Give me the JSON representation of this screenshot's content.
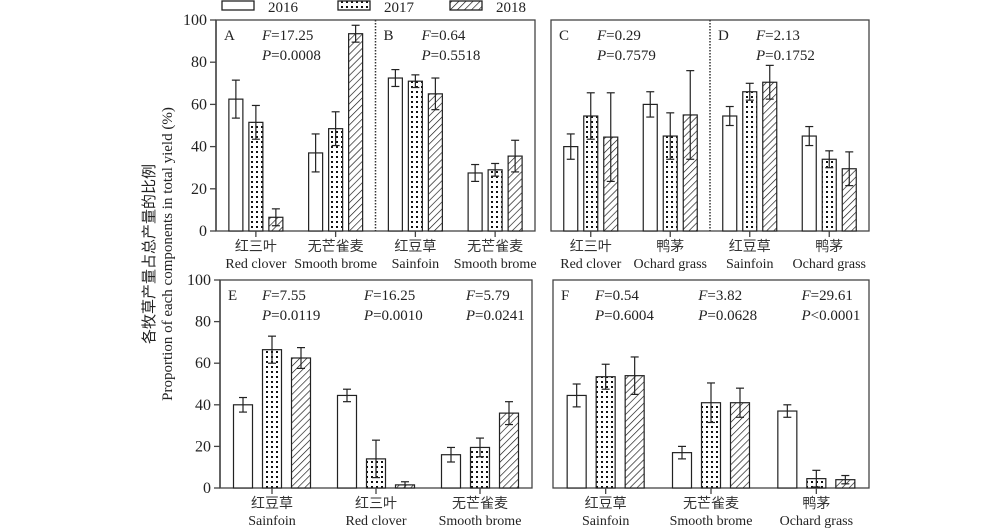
{
  "chart_data": {
    "type": "bar",
    "legend": {
      "placement": "top",
      "entries": [
        {
          "name": "2016",
          "pattern": "open"
        },
        {
          "name": "2017",
          "pattern": "dotted"
        },
        {
          "name": "2018",
          "pattern": "hatched"
        }
      ]
    },
    "ylabel_cn": "各牧草产量占总产量的比例",
    "ylabel_en": "Proportion of each components in total yield (%)",
    "ylim": [
      0,
      100
    ],
    "yticks": [
      0,
      20,
      40,
      60,
      80,
      100
    ],
    "series_names": [
      "2016",
      "2017",
      "2018"
    ],
    "panels": [
      {
        "id": "A",
        "stats": [
          {
            "F": "17.25",
            "P": "0.0008",
            "P_op": "="
          }
        ],
        "categories": [
          {
            "cn": "红三叶",
            "en": "Red clover",
            "values": [
              62.5,
              51.5,
              6.5
            ],
            "errors": [
              9,
              8,
              4
            ]
          },
          {
            "cn": "无芒雀麦",
            "en": "Smooth brome",
            "values": [
              37,
              48.5,
              93.5
            ],
            "errors": [
              9,
              8,
              4
            ]
          }
        ]
      },
      {
        "id": "B",
        "stats": [
          {
            "F": "0.64",
            "P": "0.5518",
            "P_op": "="
          }
        ],
        "categories": [
          {
            "cn": "红豆草",
            "en": "Sainfoin",
            "values": [
              72.5,
              71,
              65
            ],
            "errors": [
              4,
              3,
              7.5
            ]
          },
          {
            "cn": "无芒雀麦",
            "en": "Smooth brome",
            "values": [
              27.5,
              29,
              35.5
            ],
            "errors": [
              4,
              3,
              7.5
            ]
          }
        ]
      },
      {
        "id": "C",
        "stats": [
          {
            "F": "0.29",
            "P": "0.7579",
            "P_op": "="
          }
        ],
        "categories": [
          {
            "cn": "红三叶",
            "en": "Red clover",
            "values": [
              40,
              54.5,
              44.5
            ],
            "errors": [
              6,
              11,
              21
            ]
          },
          {
            "cn": "鸭茅",
            "en": "Ochard grass",
            "values": [
              60,
              45,
              55
            ],
            "errors": [
              6,
              11,
              21
            ]
          }
        ]
      },
      {
        "id": "D",
        "stats": [
          {
            "F": "2.13",
            "P": "0.1752",
            "P_op": "="
          }
        ],
        "categories": [
          {
            "cn": "红豆草",
            "en": "Sainfoin",
            "values": [
              54.5,
              66,
              70.5
            ],
            "errors": [
              4.5,
              4,
              8
            ]
          },
          {
            "cn": "鸭茅",
            "en": "Ochard grass",
            "values": [
              45,
              34,
              29.5
            ],
            "errors": [
              4.5,
              4,
              8
            ]
          }
        ]
      },
      {
        "id": "E",
        "stats": [
          {
            "F": "7.55",
            "P": "0.0119",
            "P_op": "="
          },
          {
            "F": "16.25",
            "P": "0.0010",
            "P_op": "="
          },
          {
            "F": "5.79",
            "P": "0.0241",
            "P_op": "="
          }
        ],
        "categories": [
          {
            "cn": "红豆草",
            "en": "Sainfoin",
            "values": [
              40,
              66.5,
              62.5
            ],
            "errors": [
              3.5,
              6.5,
              5
            ]
          },
          {
            "cn": "红三叶",
            "en": "Red clover",
            "values": [
              44.5,
              14,
              1.5
            ],
            "errors": [
              3,
              9,
              1.5
            ]
          },
          {
            "cn": "无芒雀麦",
            "en": "Smooth brome",
            "values": [
              16,
              19.5,
              36
            ],
            "errors": [
              3.5,
              4.5,
              5.5
            ]
          }
        ]
      },
      {
        "id": "F",
        "stats": [
          {
            "F": "0.54",
            "P": "0.6004",
            "P_op": "="
          },
          {
            "F": "3.82",
            "P": "0.0628",
            "P_op": "="
          },
          {
            "F": "29.61",
            "P": "0.0001",
            "P_op": "<"
          }
        ],
        "categories": [
          {
            "cn": "红豆草",
            "en": "Sainfoin",
            "values": [
              44.5,
              53.5,
              54
            ],
            "errors": [
              5.5,
              6,
              9
            ]
          },
          {
            "cn": "无芒雀麦",
            "en": "Smooth brome",
            "values": [
              17,
              41,
              41
            ],
            "errors": [
              3,
              9.5,
              7
            ]
          },
          {
            "cn": "鸭茅",
            "en": "Ochard grass",
            "values": [
              37,
              4.5,
              4
            ],
            "errors": [
              3,
              4,
              2
            ]
          }
        ]
      }
    ]
  }
}
